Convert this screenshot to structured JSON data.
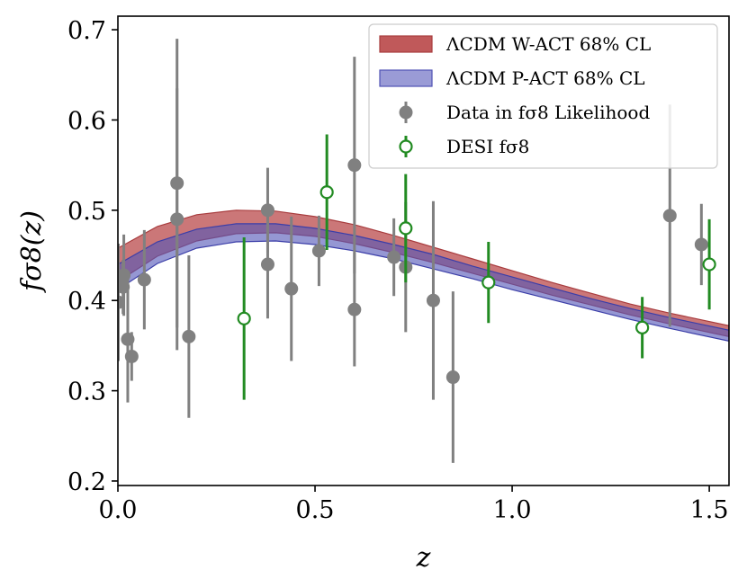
{
  "chart_data": {
    "type": "scatter",
    "xlabel": "z",
    "ylabel": "fσ8(z)",
    "xlim": [
      0.0,
      1.55
    ],
    "ylim": [
      0.195,
      0.715
    ],
    "x_ticks": [
      0.0,
      0.5,
      1.0,
      1.5
    ],
    "x_tick_labels": [
      "0.0",
      "0.5",
      "1.0",
      "1.5"
    ],
    "y_ticks": [
      0.2,
      0.3,
      0.4,
      0.5,
      0.6,
      0.7
    ],
    "y_tick_labels": [
      "0.2",
      "0.3",
      "0.4",
      "0.5",
      "0.6",
      "0.7"
    ],
    "legend_position": "top-right",
    "bands": [
      {
        "name": "ΛCDM W-ACT 68% CL",
        "color": "#c0595a",
        "edge": "#a83c3e",
        "x": [
          0.0,
          0.1,
          0.2,
          0.3,
          0.4,
          0.5,
          0.6,
          0.7,
          0.8,
          0.9,
          1.0,
          1.1,
          1.2,
          1.3,
          1.4,
          1.55
        ],
        "lower": [
          0.421,
          0.449,
          0.466,
          0.474,
          0.475,
          0.471,
          0.463,
          0.453,
          0.442,
          0.43,
          0.418,
          0.406,
          0.395,
          0.384,
          0.374,
          0.36
        ],
        "upper": [
          0.458,
          0.482,
          0.495,
          0.5,
          0.499,
          0.493,
          0.484,
          0.472,
          0.459,
          0.446,
          0.433,
          0.42,
          0.408,
          0.396,
          0.386,
          0.372
        ]
      },
      {
        "name": "ΛCDM P-ACT 68% CL",
        "color": "#5457b8",
        "edge": "#3b3ea8",
        "x": [
          0.0,
          0.1,
          0.2,
          0.3,
          0.4,
          0.5,
          0.6,
          0.7,
          0.8,
          0.9,
          1.0,
          1.1,
          1.2,
          1.3,
          1.4,
          1.55
        ],
        "lower": [
          0.412,
          0.441,
          0.458,
          0.465,
          0.466,
          0.462,
          0.455,
          0.446,
          0.435,
          0.424,
          0.412,
          0.401,
          0.39,
          0.379,
          0.369,
          0.355
        ],
        "upper": [
          0.44,
          0.465,
          0.479,
          0.485,
          0.485,
          0.48,
          0.472,
          0.462,
          0.451,
          0.438,
          0.426,
          0.414,
          0.402,
          0.391,
          0.381,
          0.367
        ]
      }
    ],
    "series": [
      {
        "name": "Data in fσ8 Likelihood",
        "color": "#808080",
        "marker": "filled-circle",
        "points": [
          {
            "x": 0.001,
            "y": 0.398,
            "err": 0.065
          },
          {
            "x": 0.013,
            "y": 0.415,
            "err": 0.03
          },
          {
            "x": 0.015,
            "y": 0.428,
            "err": 0.045
          },
          {
            "x": 0.025,
            "y": 0.357,
            "err": 0.07
          },
          {
            "x": 0.035,
            "y": 0.338,
            "err": 0.027
          },
          {
            "x": 0.067,
            "y": 0.423,
            "err": 0.055
          },
          {
            "x": 0.15,
            "y": 0.49,
            "err": 0.145
          },
          {
            "x": 0.15,
            "y": 0.53,
            "err": 0.16
          },
          {
            "x": 0.18,
            "y": 0.36,
            "err": 0.09
          },
          {
            "x": 0.38,
            "y": 0.5,
            "err": 0.047
          },
          {
            "x": 0.38,
            "y": 0.44,
            "err": 0.06
          },
          {
            "x": 0.44,
            "y": 0.413,
            "err": 0.08
          },
          {
            "x": 0.51,
            "y": 0.455,
            "err": 0.039
          },
          {
            "x": 0.6,
            "y": 0.55,
            "err": 0.12
          },
          {
            "x": 0.6,
            "y": 0.39,
            "err": 0.063
          },
          {
            "x": 0.7,
            "y": 0.448,
            "err": 0.043
          },
          {
            "x": 0.73,
            "y": 0.437,
            "err": 0.072
          },
          {
            "x": 0.8,
            "y": 0.4,
            "err": 0.11
          },
          {
            "x": 0.85,
            "y": 0.315,
            "err": 0.095
          },
          {
            "x": 1.4,
            "y": 0.494,
            "err": 0.123
          },
          {
            "x": 1.48,
            "y": 0.462,
            "err": 0.045
          }
        ]
      },
      {
        "name": "DESI fσ8",
        "color": "#228b22",
        "marker": "open-circle",
        "points": [
          {
            "x": 0.32,
            "y": 0.38,
            "err": 0.09
          },
          {
            "x": 0.53,
            "y": 0.52,
            "err": 0.064
          },
          {
            "x": 0.73,
            "y": 0.48,
            "err": 0.06
          },
          {
            "x": 0.94,
            "y": 0.42,
            "err": 0.045
          },
          {
            "x": 1.33,
            "y": 0.37,
            "err": 0.034
          },
          {
            "x": 1.5,
            "y": 0.44,
            "err": 0.05
          }
        ]
      }
    ],
    "legend": [
      {
        "label": "ΛCDM W-ACT 68% CL",
        "kind": "band",
        "color": "#c0595a",
        "edge": "#a83c3e"
      },
      {
        "label": "ΛCDM P-ACT 68% CL",
        "kind": "band",
        "color": "#9a9bd6",
        "edge": "#4f52b5"
      },
      {
        "label": "Data in fσ8 Likelihood",
        "kind": "filled-circle",
        "color": "#808080"
      },
      {
        "label": "DESI fσ8",
        "kind": "open-circle",
        "color": "#228b22"
      }
    ]
  }
}
